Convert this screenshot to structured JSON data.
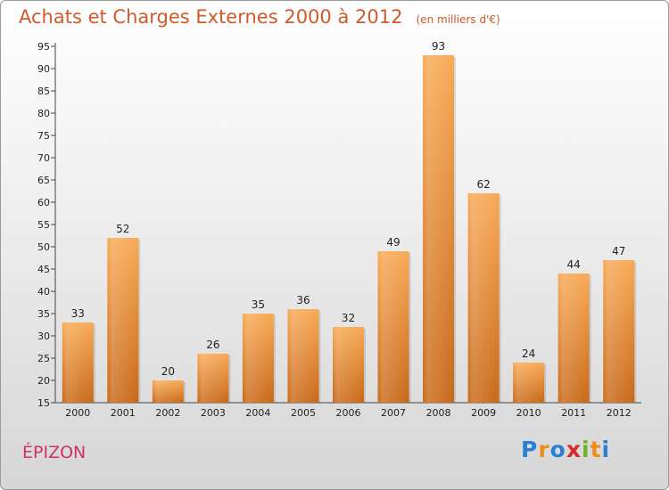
{
  "header": {
    "title": "Achats et Charges Externes 2000 à 2012",
    "unit": "(en milliers d'€)"
  },
  "footer": {
    "commune": "ÉPIZON",
    "logo_text": "Proxiti",
    "logo_colors": [
      "#2a7fd4",
      "#f08c1e",
      "#2a7fd4",
      "#d62a2a",
      "#6ab42a",
      "#f08c1e",
      "#2a7fd4"
    ]
  },
  "colors": {
    "bar_top": "#f8a955",
    "bar_bottom": "#c86818",
    "title": "#d05a2a",
    "commune": "#cc3366"
  },
  "chart_data": {
    "type": "bar",
    "title": "Achats et Charges Externes 2000 à 2012",
    "subtitle": "(en milliers d'€)",
    "xlabel": "",
    "ylabel": "",
    "categories": [
      "2000",
      "2001",
      "2002",
      "2003",
      "2004",
      "2005",
      "2006",
      "2007",
      "2008",
      "2009",
      "2010",
      "2011",
      "2012"
    ],
    "values": [
      33,
      52,
      20,
      26,
      35,
      36,
      32,
      49,
      93,
      62,
      24,
      44,
      47
    ],
    "ylim": [
      15,
      95
    ],
    "yticks": [
      15,
      20,
      25,
      30,
      35,
      40,
      45,
      50,
      55,
      60,
      65,
      70,
      75,
      80,
      85,
      90,
      95
    ],
    "grid": false,
    "data_labels": true
  }
}
